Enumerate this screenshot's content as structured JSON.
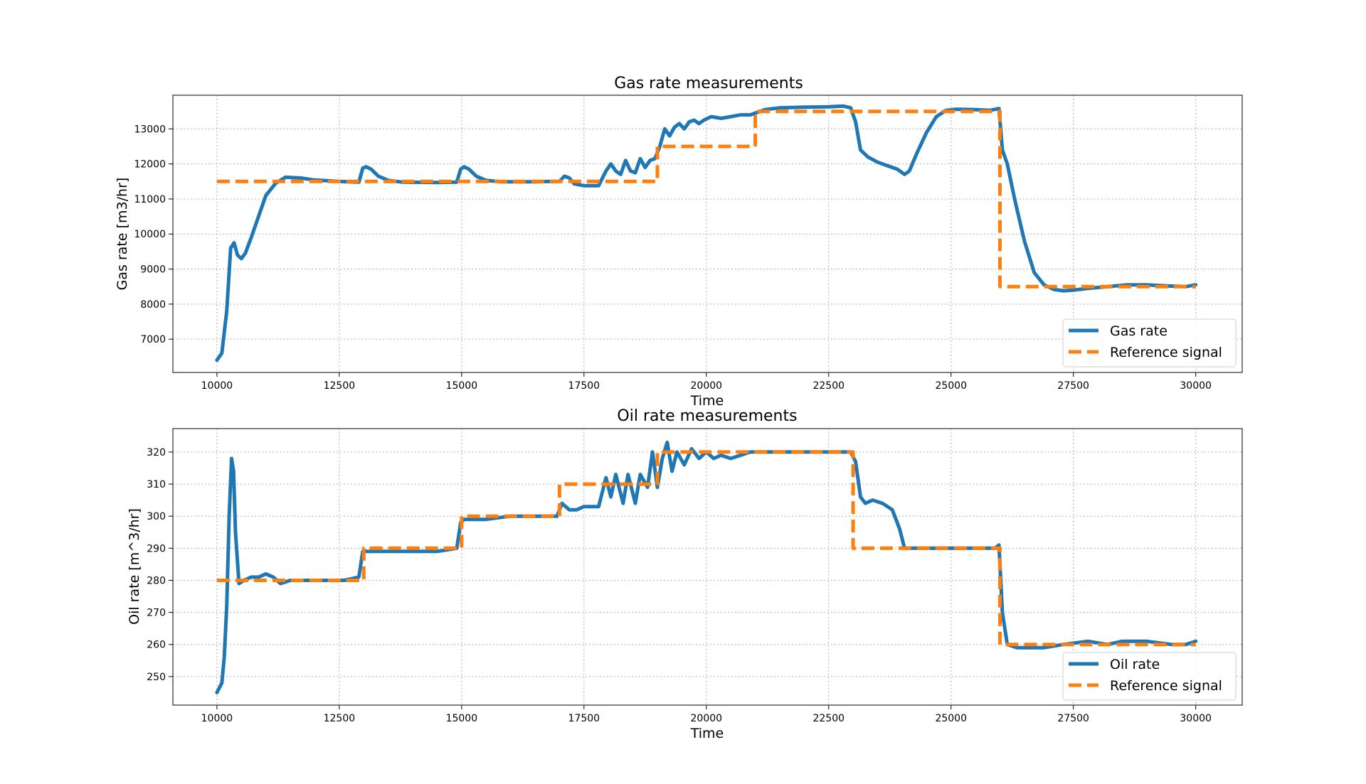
{
  "chart_data": [
    {
      "type": "line",
      "title": "Gas rate measurements",
      "xlabel": "Time",
      "ylabel": "Gas rate [m3/hr]",
      "xlim": [
        9100,
        30950
      ],
      "ylim": [
        6050,
        13960
      ],
      "xticks": [
        10000,
        12500,
        15000,
        17500,
        20000,
        22500,
        25000,
        27500,
        30000
      ],
      "yticks": [
        7000,
        8000,
        9000,
        10000,
        11000,
        12000,
        13000
      ],
      "grid": true,
      "legend_position": "lower-right",
      "series": [
        {
          "name": "Gas rate",
          "color": "#1f77b4",
          "style": "solid",
          "x": [
            10000,
            10100,
            10200,
            10280,
            10350,
            10420,
            10500,
            10580,
            10700,
            10850,
            11000,
            11200,
            11400,
            11700,
            12000,
            12500,
            12900,
            12980,
            13050,
            13150,
            13300,
            13500,
            13800,
            14500,
            14900,
            14980,
            15050,
            15150,
            15300,
            15500,
            15800,
            16500,
            16800,
            17000,
            17100,
            17200,
            17300,
            17500,
            17800,
            17950,
            18050,
            18150,
            18250,
            18350,
            18450,
            18550,
            18650,
            18750,
            18850,
            18950,
            19050,
            19150,
            19250,
            19350,
            19450,
            19550,
            19650,
            19750,
            19850,
            19950,
            20100,
            20300,
            20500,
            20700,
            20900,
            21000,
            21200,
            21500,
            22000,
            22500,
            22800,
            22950,
            23050,
            23150,
            23300,
            23500,
            23700,
            23900,
            24050,
            24150,
            24300,
            24500,
            24700,
            24900,
            25100,
            25500,
            25800,
            25980,
            26050,
            26150,
            26300,
            26500,
            26700,
            26900,
            27100,
            27300,
            27500,
            27800,
            28200,
            28600,
            29000,
            29400,
            29800,
            30000
          ],
          "y": [
            6400,
            6600,
            7800,
            9600,
            9750,
            9400,
            9300,
            9450,
            9900,
            10500,
            11100,
            11450,
            11620,
            11600,
            11540,
            11500,
            11480,
            11880,
            11920,
            11850,
            11650,
            11530,
            11480,
            11470,
            11480,
            11850,
            11920,
            11850,
            11650,
            11530,
            11490,
            11490,
            11500,
            11500,
            11650,
            11600,
            11430,
            11380,
            11380,
            11800,
            12000,
            11800,
            11700,
            12100,
            11800,
            11750,
            12150,
            11900,
            12100,
            12150,
            12500,
            13000,
            12800,
            13050,
            13150,
            13000,
            13200,
            13250,
            13150,
            13250,
            13350,
            13300,
            13350,
            13400,
            13400,
            13450,
            13550,
            13600,
            13620,
            13630,
            13650,
            13600,
            13200,
            12400,
            12200,
            12050,
            11950,
            11850,
            11700,
            11800,
            12300,
            12900,
            13350,
            13530,
            13560,
            13550,
            13530,
            13580,
            12400,
            12000,
            11000,
            9800,
            8900,
            8550,
            8420,
            8380,
            8400,
            8450,
            8500,
            8550,
            8550,
            8520,
            8500,
            8550
          ]
        },
        {
          "name": "Reference signal",
          "color": "#ff7f0e",
          "style": "dashed",
          "x": [
            10000,
            19000,
            19000,
            21000,
            21000,
            26000,
            26000,
            30000
          ],
          "y": [
            11500,
            11500,
            12500,
            12500,
            13500,
            13500,
            8500,
            8500
          ]
        }
      ]
    },
    {
      "type": "line",
      "title": "Oil rate measurements",
      "xlabel": "Time",
      "ylabel": "Oil rate [m^3/hr]",
      "xlim": [
        9100,
        30950
      ],
      "ylim": [
        241.1,
        327.3
      ],
      "xticks": [
        10000,
        12500,
        15000,
        17500,
        20000,
        22500,
        25000,
        27500,
        30000
      ],
      "yticks": [
        250,
        260,
        270,
        280,
        290,
        300,
        310,
        320
      ],
      "grid": true,
      "legend_position": "lower-right",
      "series": [
        {
          "name": "Oil rate",
          "color": "#1f77b4",
          "style": "solid",
          "x": [
            10000,
            10100,
            10150,
            10200,
            10250,
            10300,
            10340,
            10380,
            10450,
            10550,
            10700,
            10850,
            11000,
            11150,
            11300,
            11500,
            11800,
            12200,
            12600,
            12900,
            12980,
            13050,
            13200,
            13500,
            14000,
            14500,
            14900,
            14980,
            15050,
            15200,
            15500,
            16000,
            16500,
            16950,
            17050,
            17200,
            17350,
            17500,
            17800,
            17950,
            18050,
            18150,
            18300,
            18400,
            18550,
            18650,
            18800,
            18900,
            19000,
            19100,
            19200,
            19300,
            19400,
            19550,
            19700,
            19850,
            20000,
            20150,
            20300,
            20500,
            20700,
            20900,
            21100,
            21500,
            22000,
            22500,
            22950,
            23050,
            23150,
            23250,
            23400,
            23600,
            23800,
            23950,
            24050,
            24200,
            24500,
            24800,
            25100,
            25500,
            25900,
            25980,
            26050,
            26150,
            26350,
            26600,
            26900,
            27300,
            27800,
            28200,
            28500,
            29000,
            29500,
            29800,
            30000
          ],
          "y": [
            245,
            248,
            256,
            272,
            300,
            318,
            314,
            295,
            279,
            280,
            281,
            281,
            282,
            281,
            279,
            280,
            280,
            280,
            280,
            281,
            289,
            289,
            289,
            289,
            289,
            289,
            290,
            298,
            299,
            299,
            299,
            300,
            300,
            300,
            304,
            302,
            302,
            303,
            303,
            312,
            306,
            313,
            304,
            313,
            304,
            313,
            309,
            320,
            309,
            318,
            323,
            314,
            320,
            316,
            321,
            318,
            320,
            318,
            319,
            318,
            319,
            320,
            320,
            320,
            320,
            320,
            320,
            317,
            306,
            304,
            305,
            304,
            302,
            296,
            290,
            290,
            290,
            290,
            290,
            290,
            290,
            291,
            270,
            260,
            259,
            259,
            259,
            260,
            261,
            260,
            261,
            261,
            260,
            260,
            261
          ]
        },
        {
          "name": "Reference signal",
          "color": "#ff7f0e",
          "style": "dashed",
          "x": [
            10000,
            13000,
            13000,
            15000,
            15000,
            17000,
            17000,
            19000,
            19000,
            23000,
            23000,
            26000,
            26000,
            30000
          ],
          "y": [
            280,
            280,
            290,
            290,
            300,
            300,
            310,
            310,
            320,
            320,
            290,
            290,
            260,
            260
          ]
        }
      ]
    }
  ]
}
